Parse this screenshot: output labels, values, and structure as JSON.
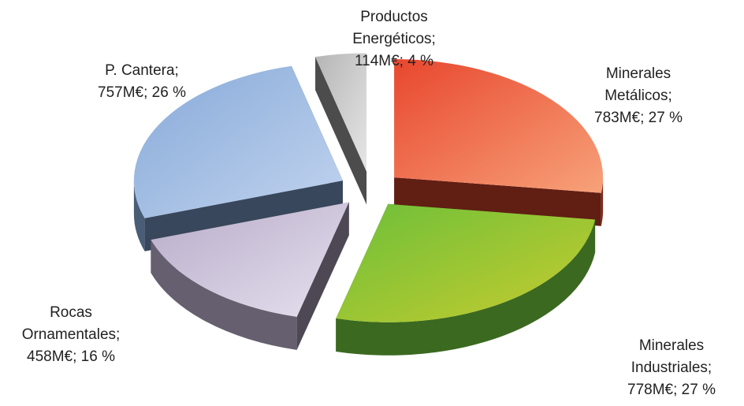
{
  "chart_data": {
    "type": "pie",
    "style": "3d-exploded",
    "unit": "M€",
    "slices": [
      {
        "label_lines": [
          "Minerales",
          "Metálicos;",
          "783M€; 27 %"
        ],
        "name": "Minerales Metálicos",
        "value": 783,
        "percent": 27,
        "color": "#e8472e",
        "color_light": "#f7a27a"
      },
      {
        "label_lines": [
          "Minerales",
          "Industriales;",
          "778M€; 27 %"
        ],
        "name": "Minerales Industriales",
        "value": 778,
        "percent": 27,
        "color": "#6cbf3a",
        "color_light": "#c8cc2e"
      },
      {
        "label_lines": [
          "Rocas",
          "Ornamentales;",
          "458M€; 16 %"
        ],
        "name": "Rocas Ornamentales",
        "value": 458,
        "percent": 16,
        "color": "#b7acc9",
        "color_light": "#e6e0ee"
      },
      {
        "label_lines": [
          "P. Cantera;",
          "757M€; 26 %"
        ],
        "name": "P. Cantera",
        "value": 757,
        "percent": 26,
        "color": "#86a9d8",
        "color_light": "#c2d4ef"
      },
      {
        "label_lines": [
          "Productos",
          "Energéticos;",
          "114M€; 4 %"
        ],
        "name": "Productos Energéticos",
        "value": 114,
        "percent": 4,
        "color": "#b5b5b5",
        "color_light": "#e6e6e6"
      }
    ]
  }
}
